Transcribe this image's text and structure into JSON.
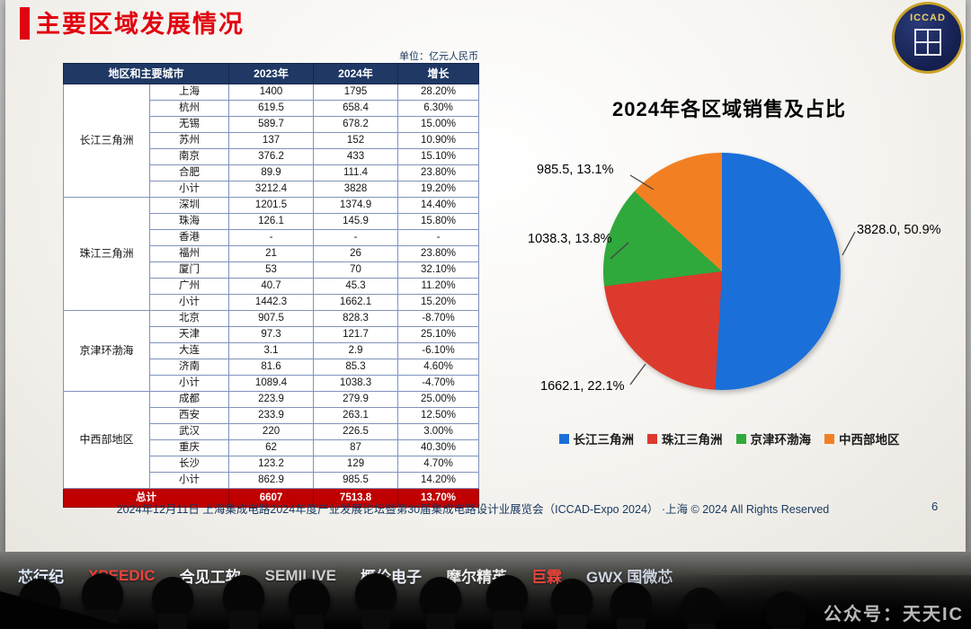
{
  "slide": {
    "title": "主要区域发展情况",
    "unit_label": "单位：亿元人民币",
    "footer": "2024年12月11日 上海集成电路2024年度产业发展论坛暨第30届集成电路设计业展览会（ICCAD-Expo 2024） ·上海 © 2024 All Rights Reserved",
    "page_number": "6",
    "logo_text": "ICCAD"
  },
  "table": {
    "headers": [
      "地区和主要城市",
      "2023年",
      "2024年",
      "增长"
    ],
    "header_bg": "#1f3864",
    "total_bg": "#c00000",
    "groups": [
      {
        "region": "长江三角洲",
        "rows": [
          [
            "上海",
            "1400",
            "1795",
            "28.20%"
          ],
          [
            "杭州",
            "619.5",
            "658.4",
            "6.30%"
          ],
          [
            "无锡",
            "589.7",
            "678.2",
            "15.00%"
          ],
          [
            "苏州",
            "137",
            "152",
            "10.90%"
          ],
          [
            "南京",
            "376.2",
            "433",
            "15.10%"
          ],
          [
            "合肥",
            "89.9",
            "111.4",
            "23.80%"
          ],
          [
            "小计",
            "3212.4",
            "3828",
            "19.20%"
          ]
        ]
      },
      {
        "region": "珠江三角洲",
        "rows": [
          [
            "深圳",
            "1201.5",
            "1374.9",
            "14.40%"
          ],
          [
            "珠海",
            "126.1",
            "145.9",
            "15.80%"
          ],
          [
            "香港",
            "-",
            "-",
            "-"
          ],
          [
            "福州",
            "21",
            "26",
            "23.80%"
          ],
          [
            "厦门",
            "53",
            "70",
            "32.10%"
          ],
          [
            "广州",
            "40.7",
            "45.3",
            "11.20%"
          ],
          [
            "小计",
            "1442.3",
            "1662.1",
            "15.20%"
          ]
        ]
      },
      {
        "region": "京津环渤海",
        "rows": [
          [
            "北京",
            "907.5",
            "828.3",
            "-8.70%"
          ],
          [
            "天津",
            "97.3",
            "121.7",
            "25.10%"
          ],
          [
            "大连",
            "3.1",
            "2.9",
            "-6.10%"
          ],
          [
            "济南",
            "81.6",
            "85.3",
            "4.60%"
          ],
          [
            "小计",
            "1089.4",
            "1038.3",
            "-4.70%"
          ]
        ]
      },
      {
        "region": "中西部地区",
        "rows": [
          [
            "成都",
            "223.9",
            "279.9",
            "25.00%"
          ],
          [
            "西安",
            "233.9",
            "263.1",
            "12.50%"
          ],
          [
            "武汉",
            "220",
            "226.5",
            "3.00%"
          ],
          [
            "重庆",
            "62",
            "87",
            "40.30%"
          ],
          [
            "长沙",
            "123.2",
            "129",
            "4.70%"
          ],
          [
            "小计",
            "862.9",
            "985.5",
            "14.20%"
          ]
        ]
      }
    ],
    "total": [
      "总计",
      "6607",
      "7513.8",
      "13.70%"
    ]
  },
  "chart_data": {
    "type": "pie",
    "title": "2024年各区域销售及占比",
    "unit": "亿元人民币",
    "labels": [
      "长江三角洲",
      "珠江三角洲",
      "京津环渤海",
      "中西部地区"
    ],
    "values": [
      3828.0,
      1662.1,
      1038.3,
      985.5
    ],
    "percents": [
      50.9,
      22.1,
      13.8,
      13.1
    ],
    "colors": [
      "#1b6fd8",
      "#dc3a2c",
      "#2fa83c",
      "#f28022"
    ],
    "annotations": [
      "3828.0, 50.9%",
      "1662.1, 22.1%",
      "1038.3, 13.8%",
      "985.5, 13.1%"
    ],
    "legend_position": "bottom"
  },
  "bottom": {
    "logos": [
      {
        "text": "芯行纪",
        "color": "#dfe9ff"
      },
      {
        "text": "XPEEDIC",
        "color": "#e8453c"
      },
      {
        "text": "合见工软",
        "color": "#f2f4f8"
      },
      {
        "text": "SEMILIVE",
        "color": "#cfcfcf"
      },
      {
        "text": "概伦电子",
        "color": "#e9edf5"
      },
      {
        "text": "摩尔精英",
        "color": "#f0f0f0"
      },
      {
        "text": "巨霖",
        "color": "#e8453c"
      },
      {
        "text": "GWX 国微芯",
        "color": "#cfd6e4"
      }
    ],
    "watermark": "公众号：天天IC"
  }
}
